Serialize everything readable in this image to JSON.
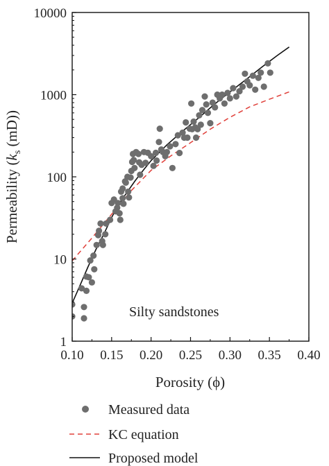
{
  "chart_data": {
    "type": "scatter",
    "title": "",
    "annotation": "Silty sandstones",
    "xlabel": "Porosity (ϕ)",
    "ylabel_main": "Permeability (",
    "ylabel_k": "k",
    "ylabel_sub": "s",
    "ylabel_unit": " (mD))",
    "xscale": "linear",
    "yscale": "log",
    "xlim": [
      0.1,
      0.4
    ],
    "ylim": [
      1,
      10000
    ],
    "xticks": [
      0.1,
      0.15,
      0.2,
      0.25,
      0.3,
      0.35,
      0.4
    ],
    "xtick_labels": [
      "0.10",
      "0.15",
      "0.20",
      "0.25",
      "0.30",
      "0.35",
      "0.40"
    ],
    "yticks": [
      1,
      10,
      100,
      1000,
      10000
    ],
    "ytick_labels": [
      "1",
      "10",
      "100",
      "1000",
      "10000"
    ],
    "grid": false,
    "legend_position": "below",
    "legend": [
      {
        "label": "Measured data",
        "style": "marker"
      },
      {
        "label": "KC equation",
        "style": "dashed"
      },
      {
        "label": "Proposed model",
        "style": "solid"
      }
    ],
    "colors": {
      "measured": "#6e6e6e",
      "kc": "#e0403a",
      "proposed": "#111111"
    },
    "series": [
      {
        "name": "Measured data",
        "kind": "scatter",
        "points": [
          [
            0.1,
            2.8
          ],
          [
            0.1,
            2.0
          ],
          [
            0.112,
            4.4
          ],
          [
            0.115,
            2.6
          ],
          [
            0.115,
            1.9
          ],
          [
            0.118,
            6.1
          ],
          [
            0.118,
            4.1
          ],
          [
            0.121,
            6.0
          ],
          [
            0.123,
            9.6
          ],
          [
            0.125,
            5.2
          ],
          [
            0.127,
            11.0
          ],
          [
            0.128,
            7.5
          ],
          [
            0.131,
            14.8
          ],
          [
            0.133,
            19.5
          ],
          [
            0.134,
            22.0
          ],
          [
            0.136,
            27.0
          ],
          [
            0.138,
            16.5
          ],
          [
            0.139,
            14.8
          ],
          [
            0.142,
            20.0
          ],
          [
            0.143,
            27.0
          ],
          [
            0.148,
            30.0
          ],
          [
            0.15,
            48.0
          ],
          [
            0.153,
            53.0
          ],
          [
            0.155,
            38.0
          ],
          [
            0.157,
            42.0
          ],
          [
            0.158,
            48.0
          ],
          [
            0.16,
            36.0
          ],
          [
            0.161,
            30.0
          ],
          [
            0.162,
            66.0
          ],
          [
            0.164,
            72.0
          ],
          [
            0.164,
            55.0
          ],
          [
            0.165,
            47.0
          ],
          [
            0.167,
            88.0
          ],
          [
            0.168,
            85.0
          ],
          [
            0.17,
            100.0
          ],
          [
            0.171,
            66.0
          ],
          [
            0.172,
            56.0
          ],
          [
            0.174,
            98.0
          ],
          [
            0.175,
            118.0
          ],
          [
            0.176,
            152.0
          ],
          [
            0.177,
            190.0
          ],
          [
            0.178,
            160.0
          ],
          [
            0.179,
            128.0
          ],
          [
            0.181,
            200.0
          ],
          [
            0.184,
            190.0
          ],
          [
            0.185,
            150.0
          ],
          [
            0.186,
            106.0
          ],
          [
            0.188,
            140.0
          ],
          [
            0.191,
            200.0
          ],
          [
            0.193,
            148.0
          ],
          [
            0.196,
            196.0
          ],
          [
            0.2,
            178.0
          ],
          [
            0.203,
            136.0
          ],
          [
            0.206,
            196.0
          ],
          [
            0.207,
            158.0
          ],
          [
            0.21,
            265.0
          ],
          [
            0.211,
            385.0
          ],
          [
            0.213,
            215.0
          ],
          [
            0.215,
            200.0
          ],
          [
            0.218,
            178.0
          ],
          [
            0.22,
            200.0
          ],
          [
            0.224,
            235.0
          ],
          [
            0.227,
            128.0
          ],
          [
            0.231,
            250.0
          ],
          [
            0.234,
            320.0
          ],
          [
            0.236,
            195.0
          ],
          [
            0.24,
            345.0
          ],
          [
            0.242,
            300.0
          ],
          [
            0.244,
            460.0
          ],
          [
            0.246,
            300.0
          ],
          [
            0.249,
            385.0
          ],
          [
            0.251,
            780.0
          ],
          [
            0.252,
            380.0
          ],
          [
            0.254,
            470.0
          ],
          [
            0.256,
            400.0
          ],
          [
            0.257,
            300.0
          ],
          [
            0.259,
            380.0
          ],
          [
            0.261,
            560.0
          ],
          [
            0.263,
            430.0
          ],
          [
            0.265,
            650.0
          ],
          [
            0.268,
            950.0
          ],
          [
            0.27,
            760.0
          ],
          [
            0.272,
            600.0
          ],
          [
            0.275,
            450.0
          ],
          [
            0.278,
            800.0
          ],
          [
            0.281,
            700.0
          ],
          [
            0.284,
            1000.0
          ],
          [
            0.287,
            900.0
          ],
          [
            0.29,
            1000.0
          ],
          [
            0.293,
            780.0
          ],
          [
            0.297,
            1050.0
          ],
          [
            0.3,
            900.0
          ],
          [
            0.304,
            1200.0
          ],
          [
            0.308,
            950.0
          ],
          [
            0.312,
            1100.0
          ],
          [
            0.316,
            1250.0
          ],
          [
            0.319,
            1800.0
          ],
          [
            0.322,
            1450.0
          ],
          [
            0.325,
            1300.0
          ],
          [
            0.329,
            1700.0
          ],
          [
            0.332,
            1150.0
          ],
          [
            0.336,
            1600.0
          ],
          [
            0.339,
            1850.0
          ],
          [
            0.343,
            1250.0
          ],
          [
            0.348,
            2400.0
          ],
          [
            0.351,
            1850.0
          ]
        ]
      },
      {
        "name": "KC equation",
        "kind": "line",
        "style": "dashed",
        "points": [
          [
            0.1,
            9.5
          ],
          [
            0.125,
            18.0
          ],
          [
            0.15,
            35.0
          ],
          [
            0.175,
            68.0
          ],
          [
            0.2,
            120.0
          ],
          [
            0.225,
            180.0
          ],
          [
            0.25,
            260.0
          ],
          [
            0.275,
            380.0
          ],
          [
            0.3,
            530.0
          ],
          [
            0.325,
            710.0
          ],
          [
            0.35,
            880.0
          ],
          [
            0.375,
            1080.0
          ]
        ]
      },
      {
        "name": "Proposed model",
        "kind": "line",
        "style": "solid",
        "points": [
          [
            0.1,
            2.9
          ],
          [
            0.11,
            4.8
          ],
          [
            0.12,
            8.0
          ],
          [
            0.13,
            13.0
          ],
          [
            0.14,
            20.0
          ],
          [
            0.15,
            32.0
          ],
          [
            0.16,
            48.0
          ],
          [
            0.17,
            66.0
          ],
          [
            0.18,
            90.0
          ],
          [
            0.19,
            120.0
          ],
          [
            0.2,
            158.0
          ],
          [
            0.22,
            245.0
          ],
          [
            0.24,
            360.0
          ],
          [
            0.26,
            520.0
          ],
          [
            0.28,
            760.0
          ],
          [
            0.3,
            1080.0
          ],
          [
            0.32,
            1520.0
          ],
          [
            0.34,
            2150.0
          ],
          [
            0.36,
            3000.0
          ],
          [
            0.375,
            3800.0
          ]
        ]
      }
    ]
  }
}
